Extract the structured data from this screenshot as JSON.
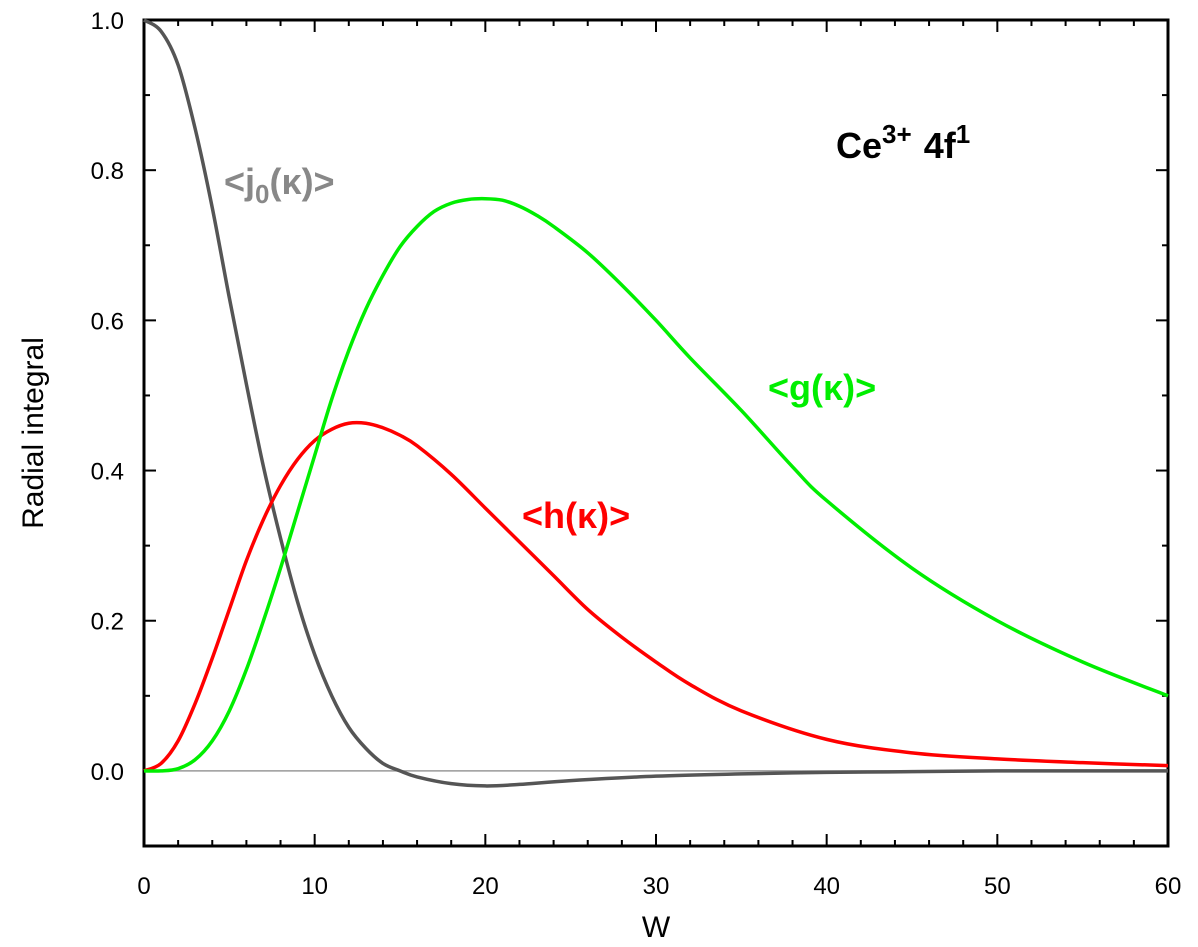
{
  "chart_data": {
    "type": "line",
    "title": "",
    "xlabel": "W",
    "ylabel": "Radial integral",
    "xlim": [
      0,
      60
    ],
    "ylim": [
      -0.1,
      1.0
    ],
    "x_ticks": [
      0,
      10,
      20,
      30,
      40,
      50,
      60
    ],
    "y_ticks": [
      0.0,
      0.2,
      0.4,
      0.6,
      0.8,
      1.0
    ],
    "x_tick_labels": [
      "0",
      "10",
      "20",
      "30",
      "40",
      "50",
      "60"
    ],
    "y_tick_labels": [
      "0.0",
      "0.2",
      "0.4",
      "0.6",
      "0.8",
      "1.0"
    ],
    "grid": false,
    "zero_line": true,
    "annotation": {
      "ion": "Ce",
      "charge": "3+",
      "shell": "4f",
      "occupancy": "1"
    },
    "series": [
      {
        "label_prefix": "<j",
        "label_sub": "0",
        "label_suffix": "(κ)>",
        "color": "#555555",
        "label_color": "#888888",
        "x": [
          0,
          1,
          2,
          3,
          4,
          5,
          6,
          7,
          8,
          9,
          10,
          11,
          12,
          13,
          14,
          15,
          16,
          18,
          20,
          22,
          25,
          30,
          35,
          40,
          45,
          50,
          55,
          60
        ],
        "y": [
          1.0,
          0.985,
          0.94,
          0.855,
          0.75,
          0.63,
          0.515,
          0.405,
          0.31,
          0.225,
          0.155,
          0.1,
          0.058,
          0.03,
          0.01,
          0.0,
          -0.008,
          -0.017,
          -0.02,
          -0.018,
          -0.013,
          -0.007,
          -0.004,
          -0.002,
          -0.001,
          0.0,
          0.0,
          0.0
        ]
      },
      {
        "label_prefix": "<h",
        "label_sub": "",
        "label_suffix": "(κ)>",
        "color": "#ff0000",
        "label_color": "#ff0000",
        "x": [
          0,
          1,
          2,
          3,
          4,
          5,
          6,
          7,
          8,
          9,
          10,
          11,
          12,
          13,
          14,
          15,
          16,
          18,
          20,
          22,
          24,
          26,
          28,
          30,
          32,
          35,
          40,
          45,
          50,
          55,
          60
        ],
        "y": [
          0.0,
          0.01,
          0.04,
          0.09,
          0.15,
          0.215,
          0.28,
          0.335,
          0.38,
          0.415,
          0.44,
          0.455,
          0.463,
          0.463,
          0.457,
          0.447,
          0.433,
          0.395,
          0.35,
          0.305,
          0.26,
          0.215,
          0.178,
          0.145,
          0.115,
          0.08,
          0.042,
          0.024,
          0.016,
          0.011,
          0.007
        ]
      },
      {
        "label_prefix": "<g",
        "label_sub": "",
        "label_suffix": "(κ)>",
        "color": "#00ee00",
        "label_color": "#00ee00",
        "x": [
          0,
          1,
          2,
          3,
          4,
          5,
          6,
          7,
          8,
          9,
          10,
          11,
          12,
          13,
          14,
          15,
          16,
          17,
          18,
          19,
          20,
          21,
          22,
          23,
          24,
          26,
          28,
          30,
          32,
          35,
          38,
          40,
          45,
          50,
          55,
          60
        ],
        "y": [
          0.0,
          0.0,
          0.003,
          0.015,
          0.04,
          0.08,
          0.135,
          0.2,
          0.27,
          0.345,
          0.42,
          0.495,
          0.56,
          0.615,
          0.66,
          0.698,
          0.725,
          0.745,
          0.756,
          0.761,
          0.762,
          0.76,
          0.752,
          0.74,
          0.725,
          0.69,
          0.647,
          0.6,
          0.55,
          0.48,
          0.405,
          0.36,
          0.27,
          0.2,
          0.145,
          0.1
        ]
      }
    ]
  }
}
